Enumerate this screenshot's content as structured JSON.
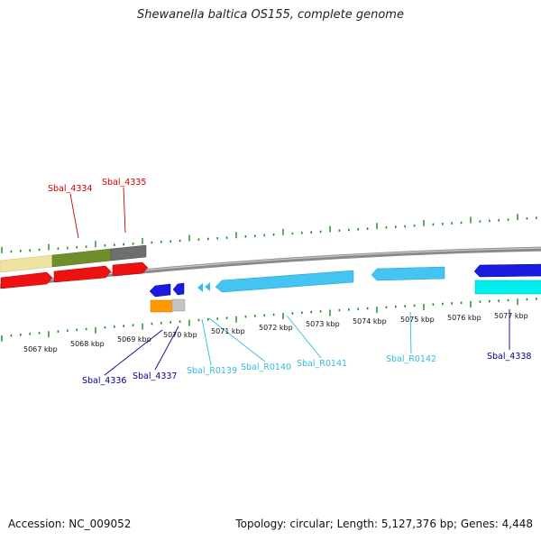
{
  "title": "Shewanella baltica OS155, complete genome",
  "footer": {
    "accession": "Accession: NC_009052",
    "summary": "Topology: circular; Length: 5,127,376 bp; Genes: 4,448"
  },
  "colors": {
    "backbone": "#8a8a8a",
    "tick": "#1a8a1a",
    "label_red": "#cc0000",
    "label_navy": "#00008b",
    "label_cyan": "#33bbdd"
  },
  "scale_labels": [
    "5067 kbp",
    "5068 kbp",
    "5069 kbp",
    "5070 kbp",
    "5071 kbp",
    "5072 kbp",
    "5073 kbp",
    "5074 kbp",
    "5075 kbp",
    "5076 kbp",
    "5077 kbp"
  ],
  "gene_labels": [
    {
      "text": "Sbal_4334",
      "color": "#cc0000"
    },
    {
      "text": "Sbal_4335",
      "color": "#cc0000"
    },
    {
      "text": "Sbal_4336",
      "color": "#00008b"
    },
    {
      "text": "Sbal_4337",
      "color": "#00008b"
    },
    {
      "text": "Sbal_R0139",
      "color": "#33bbdd"
    },
    {
      "text": "Sbal_R0140",
      "color": "#33bbdd"
    },
    {
      "text": "Sbal_R0141",
      "color": "#33bbdd"
    },
    {
      "text": "Sbal_R0142",
      "color": "#33bbdd"
    },
    {
      "text": "Sbal_4338",
      "color": "#00008b"
    }
  ]
}
